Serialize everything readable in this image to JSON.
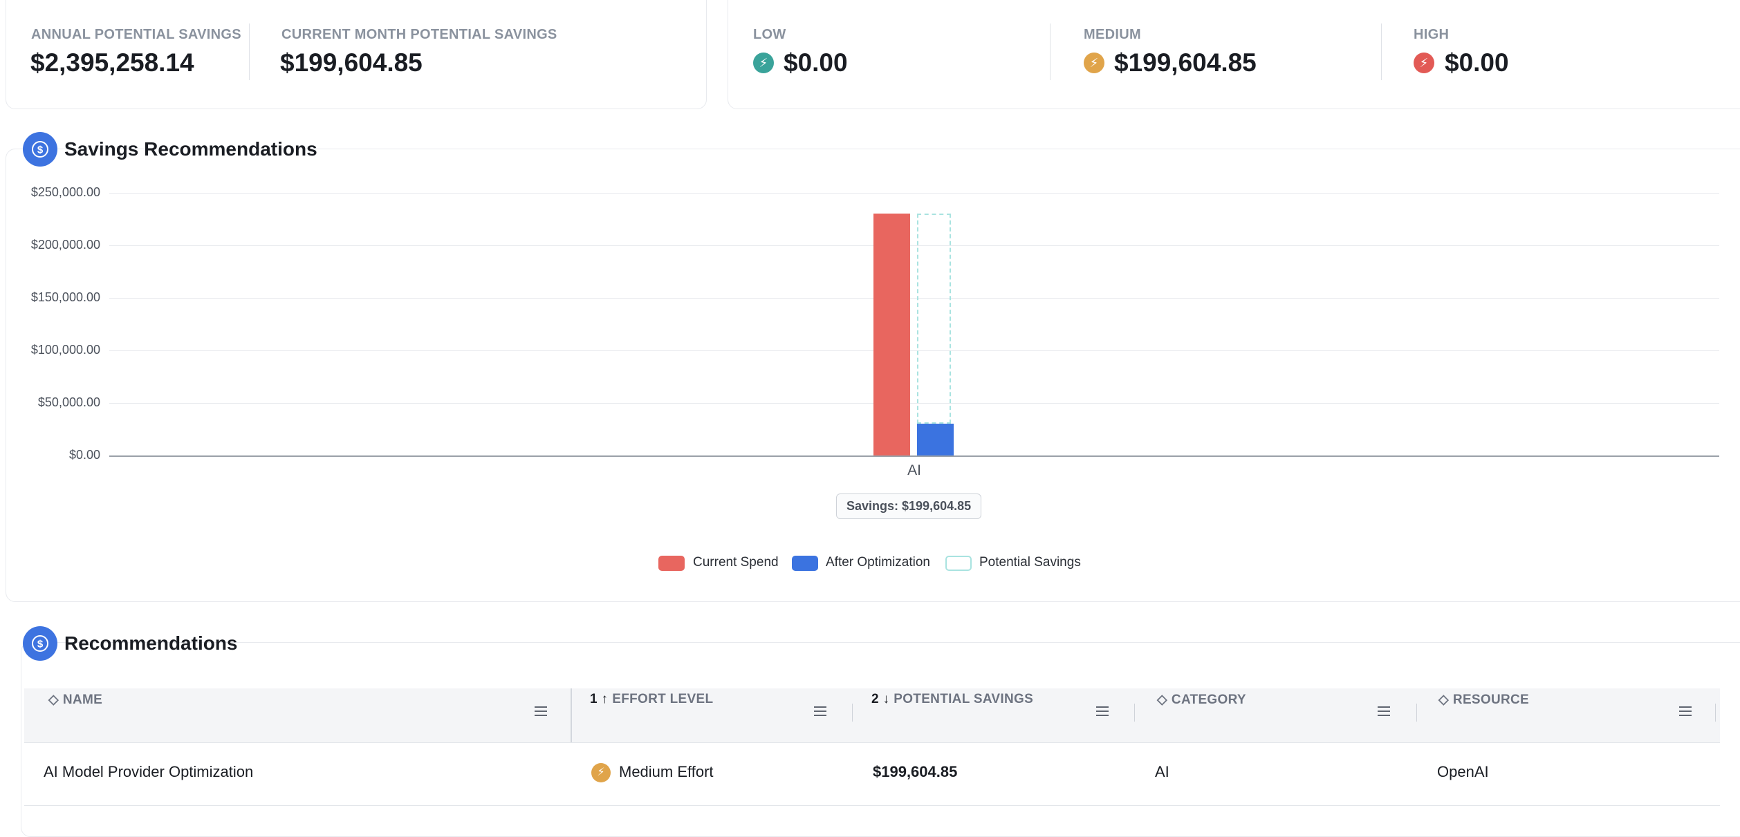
{
  "summary": {
    "annual_label": "ANNUAL POTENTIAL SAVINGS",
    "annual_value": "$2,395,258.14",
    "month_label": "CURRENT MONTH POTENTIAL SAVINGS",
    "month_value": "$199,604.85"
  },
  "effort_summary": {
    "low_label": "LOW",
    "low_value": "$0.00",
    "low_color": "#3aa39a",
    "medium_label": "MEDIUM",
    "medium_value": "$199,604.85",
    "medium_color": "#e0a44a",
    "high_label": "HIGH",
    "high_value": "$0.00",
    "high_color": "#e25a55"
  },
  "savings_section": {
    "title": "Savings Recommendations",
    "icon": "dollar-circle-icon",
    "tooltip": "Savings: $199,604.85"
  },
  "chart_data": {
    "type": "bar",
    "categories": [
      "AI"
    ],
    "series": [
      {
        "name": "Current Spend",
        "values": [
          230000
        ],
        "color": "#e8665f"
      },
      {
        "name": "After Optimization",
        "values": [
          30395.15
        ],
        "color": "#3b73e0"
      },
      {
        "name": "Potential Savings",
        "values": [
          199604.85
        ],
        "color": "#a9e3e0"
      }
    ],
    "y_ticks": [
      "$250,000.00",
      "$200,000.00",
      "$150,000.00",
      "$100,000.00",
      "$50,000.00",
      "$0.00"
    ],
    "ylim": [
      0,
      250000
    ],
    "grid": true,
    "legend_position": "bottom-center"
  },
  "recommendations": {
    "title": "Recommendations",
    "icon": "dollar-circle-icon",
    "columns": [
      {
        "label": "NAME",
        "sort": "◇"
      },
      {
        "label": "EFFORT LEVEL",
        "sort": "1 ↑"
      },
      {
        "label": "POTENTIAL SAVINGS",
        "sort": "2 ↓"
      },
      {
        "label": "CATEGORY",
        "sort": "◇"
      },
      {
        "label": "RESOURCE",
        "sort": "◇"
      }
    ],
    "rows": [
      {
        "name": "AI Model Provider Optimization",
        "effort": "Medium Effort",
        "effort_color": "#e0a44a",
        "savings": "$199,604.85",
        "category": "AI",
        "resource": "OpenAI"
      }
    ]
  }
}
